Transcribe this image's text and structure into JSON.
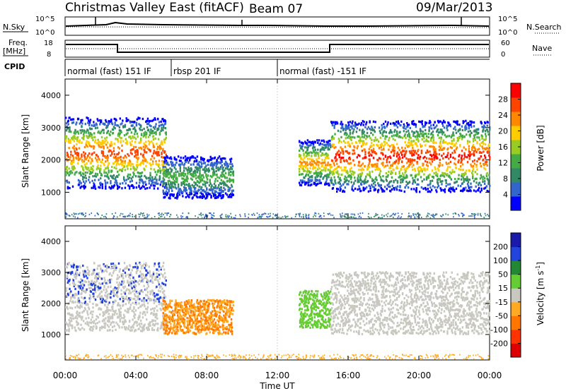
{
  "header": {
    "title": "Christmas Valley East (fitACF)",
    "beam": "Beam 07",
    "date": "09/Mar/2013"
  },
  "status": {
    "nsky_label": "N.Sky",
    "nsearch_label": "N.Search",
    "freq_label": "Freq.",
    "freq_unit": "[MHz]",
    "nave_label": "Nave",
    "cpid_label": "CPID",
    "nsky_ticks": [
      "10^5",
      "10^0"
    ],
    "nsearch_ticks": [
      "10^5",
      "10^0"
    ],
    "freq_ticks": [
      "18",
      "8"
    ],
    "nave_ticks": [
      "60",
      "0"
    ],
    "cpid_segments": [
      {
        "text": "normal (fast) 151 IF",
        "start": 0.0,
        "end": 6.0
      },
      {
        "text": "rbsp 201 IF",
        "start": 6.0,
        "end": 12.0
      },
      {
        "text": "normal (fast) -151 IF",
        "start": 12.0,
        "end": 24.0
      }
    ]
  },
  "chart_data": [
    {
      "type": "heatmap",
      "name": "power",
      "ylabel": "Slant Range [km]",
      "xlabel": "Time UT",
      "xlim": [
        0,
        24
      ],
      "ylim": [
        180,
        4500
      ],
      "x_ticks": [
        "00:00",
        "04:00",
        "08:00",
        "12:00",
        "16:00",
        "20:00",
        "00:00"
      ],
      "y_ticks": [
        1000,
        2000,
        3000,
        4000
      ],
      "colorbar": {
        "label": "Power [dB]",
        "ticks": [
          4,
          8,
          12,
          16,
          20,
          24,
          28
        ],
        "range": [
          0,
          32
        ],
        "colors": [
          "#0000ff",
          "#3366cc",
          "#338866",
          "#44aa44",
          "#99cc22",
          "#ffcc00",
          "#ff8800",
          "#ff4400",
          "#ff0000"
        ]
      },
      "features": [
        {
          "t_start": 0.0,
          "t_end": 5.7,
          "range_km": [
            1100,
            3300
          ],
          "peak_db": 28
        },
        {
          "t_start": 5.5,
          "t_end": 9.5,
          "range_km": [
            800,
            2100
          ],
          "peak_db": 14
        },
        {
          "t_start": 13.2,
          "t_end": 15.0,
          "range_km": [
            1200,
            2600
          ],
          "peak_db": 24
        },
        {
          "t_start": 15.0,
          "t_end": 24.0,
          "range_km": [
            1000,
            3200
          ],
          "peak_db": 30
        }
      ]
    },
    {
      "type": "heatmap",
      "name": "velocity",
      "ylabel": "Slant Range [km]",
      "xlabel": "Time UT",
      "xlim": [
        0,
        24
      ],
      "ylim": [
        180,
        4500
      ],
      "x_ticks": [
        "00:00",
        "04:00",
        "08:00",
        "12:00",
        "16:00",
        "20:00",
        "00:00"
      ],
      "y_ticks": [
        1000,
        2000,
        3000,
        4000
      ],
      "colorbar": {
        "label": "Velocity [m s^-1]",
        "ticks": [
          200,
          100,
          50,
          15,
          -15,
          -50,
          -100,
          -200
        ],
        "colors": [
          "#1a1aaa",
          "#2244dd",
          "#228833",
          "#66cc33",
          "#c8c8c0",
          "#ffaa22",
          "#ff7700",
          "#ff3300",
          "#dd0000"
        ]
      },
      "features": [
        {
          "t_start": 0.0,
          "t_end": 5.7,
          "range_km": [
            1100,
            3300
          ],
          "velocity": "ground scatter / +100 to +200"
        },
        {
          "t_start": 5.5,
          "t_end": 9.5,
          "range_km": [
            1000,
            2100
          ],
          "velocity": "-50 to -100"
        },
        {
          "t_start": 13.2,
          "t_end": 15.0,
          "range_km": [
            1200,
            2400
          ],
          "velocity": "+50"
        },
        {
          "t_start": 15.0,
          "t_end": 24.0,
          "range_km": [
            1000,
            3000
          ],
          "velocity": "ground scatter"
        }
      ]
    }
  ]
}
